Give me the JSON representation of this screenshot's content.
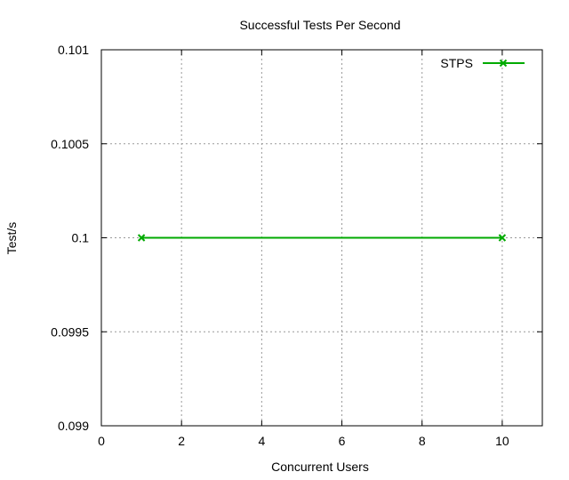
{
  "chart_data": {
    "type": "line",
    "title": "Successful Tests Per Second",
    "xlabel": "Concurrent Users",
    "ylabel": "Test/s",
    "xlim": [
      0,
      11
    ],
    "ylim": [
      0.099,
      0.101
    ],
    "x_ticks": [
      "0",
      "2",
      "4",
      "6",
      "8",
      "10"
    ],
    "y_ticks": [
      "0.099",
      "0.0995",
      "0.1",
      "0.1005",
      "0.101"
    ],
    "grid": true,
    "legend_position": "top-right",
    "series": [
      {
        "name": "STPS",
        "color": "#00aa00",
        "marker": "x",
        "x": [
          1,
          10
        ],
        "y": [
          0.1,
          0.1
        ]
      }
    ]
  }
}
